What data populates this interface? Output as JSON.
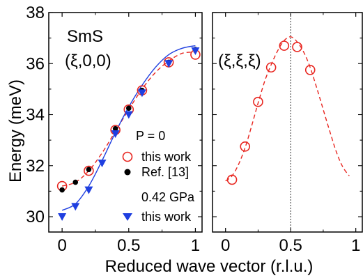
{
  "chart_data": [
    {
      "type": "scatter",
      "panel_label": "(ξ,0,0)",
      "sample_label": "SmS",
      "xlim": [
        -0.1,
        1.05
      ],
      "ylim": [
        29.4,
        38
      ],
      "xticks": [
        {
          "value": 0,
          "label": "0"
        },
        {
          "value": 0.5,
          "label": "0.5"
        },
        {
          "value": 1,
          "label": "1"
        }
      ],
      "yticks": [
        {
          "value": 30,
          "label": "30"
        },
        {
          "value": 32,
          "label": "32"
        },
        {
          "value": 34,
          "label": "34"
        },
        {
          "value": 36,
          "label": "36"
        },
        {
          "value": 38,
          "label": "38"
        }
      ],
      "ylabel": "Energy (meV)",
      "series": [
        {
          "name": "this work",
          "group": "P = 0",
          "marker": "open-circle",
          "color": "#e8251f",
          "x": [
            0,
            0.2,
            0.4,
            0.5,
            0.6,
            0.8,
            1.0
          ],
          "y": [
            31.2,
            31.8,
            33.4,
            34.2,
            34.95,
            36.05,
            36.35
          ]
        },
        {
          "name": "Ref. [13]",
          "marker": "filled-circle",
          "color": "#000000",
          "x": [
            0,
            0.1,
            0.2,
            0.4,
            0.5,
            0.6,
            0.8,
            1.0
          ],
          "y": [
            31.05,
            31.35,
            31.85,
            33.45,
            34.25,
            34.95,
            36.05,
            36.55
          ]
        },
        {
          "name": "this work",
          "group": "0.42 GPa",
          "marker": "filled-triangle-down",
          "color": "#1f3fe0",
          "x": [
            0,
            0.1,
            0.2,
            0.3,
            0.4,
            0.5,
            0.6,
            0.8,
            1.0
          ],
          "y": [
            30.0,
            30.4,
            31.05,
            32.1,
            33.25,
            34.0,
            34.85,
            36.0,
            36.5
          ]
        }
      ],
      "fits": [
        {
          "style": "dashed",
          "color": "#e8251f",
          "x": [
            0,
            0.1,
            0.2,
            0.3,
            0.4,
            0.5,
            0.6,
            0.7,
            0.8,
            0.9,
            1.0
          ],
          "y": [
            31.2,
            31.35,
            31.8,
            32.5,
            33.35,
            34.2,
            35.0,
            35.65,
            36.1,
            36.4,
            36.45
          ]
        },
        {
          "style": "solid",
          "color": "#1f3fe0",
          "x": [
            0,
            0.1,
            0.2,
            0.3,
            0.4,
            0.5,
            0.6,
            0.7,
            0.8,
            0.9,
            1.0
          ],
          "y": [
            30.25,
            30.5,
            31.2,
            32.2,
            33.3,
            34.3,
            35.15,
            35.85,
            36.35,
            36.6,
            36.7
          ]
        }
      ]
    },
    {
      "type": "scatter",
      "panel_label": "(ξ,ξ,ξ)",
      "xlim": [
        -0.1,
        1.05
      ],
      "ylim": [
        29.4,
        38
      ],
      "xticks": [
        {
          "value": 0,
          "label": "0"
        },
        {
          "value": 0.5,
          "label": "0.5"
        },
        {
          "value": 1,
          "label": "1"
        }
      ],
      "vline": 0.5,
      "series": [
        {
          "name": "this work",
          "group": "P = 0",
          "marker": "open-circle",
          "color": "#e8251f",
          "x": [
            0.05,
            0.15,
            0.25,
            0.35,
            0.45,
            0.55,
            0.65
          ],
          "y": [
            31.45,
            32.75,
            34.5,
            35.85,
            36.7,
            36.65,
            35.75
          ]
        }
      ],
      "fits": [
        {
          "style": "dashed",
          "color": "#e8251f",
          "x": [
            0.0,
            0.05,
            0.1,
            0.15,
            0.2,
            0.25,
            0.3,
            0.35,
            0.4,
            0.45,
            0.5,
            0.55,
            0.6,
            0.65,
            0.7,
            0.75,
            0.8,
            0.85,
            0.9,
            0.95
          ],
          "y": [
            31.4,
            31.6,
            32.05,
            32.7,
            33.55,
            34.45,
            35.3,
            35.95,
            36.5,
            36.9,
            37.05,
            36.85,
            36.45,
            35.85,
            35.05,
            34.2,
            33.35,
            32.55,
            31.95,
            31.6
          ]
        }
      ]
    }
  ],
  "xlabel": "Reduced wave vector (r.l.u.)",
  "legend": {
    "group1_title": "P = 0",
    "entry1": "this work",
    "entry2": "Ref. [13]",
    "group2_title": "0.42 GPa",
    "entry3": "this work"
  }
}
